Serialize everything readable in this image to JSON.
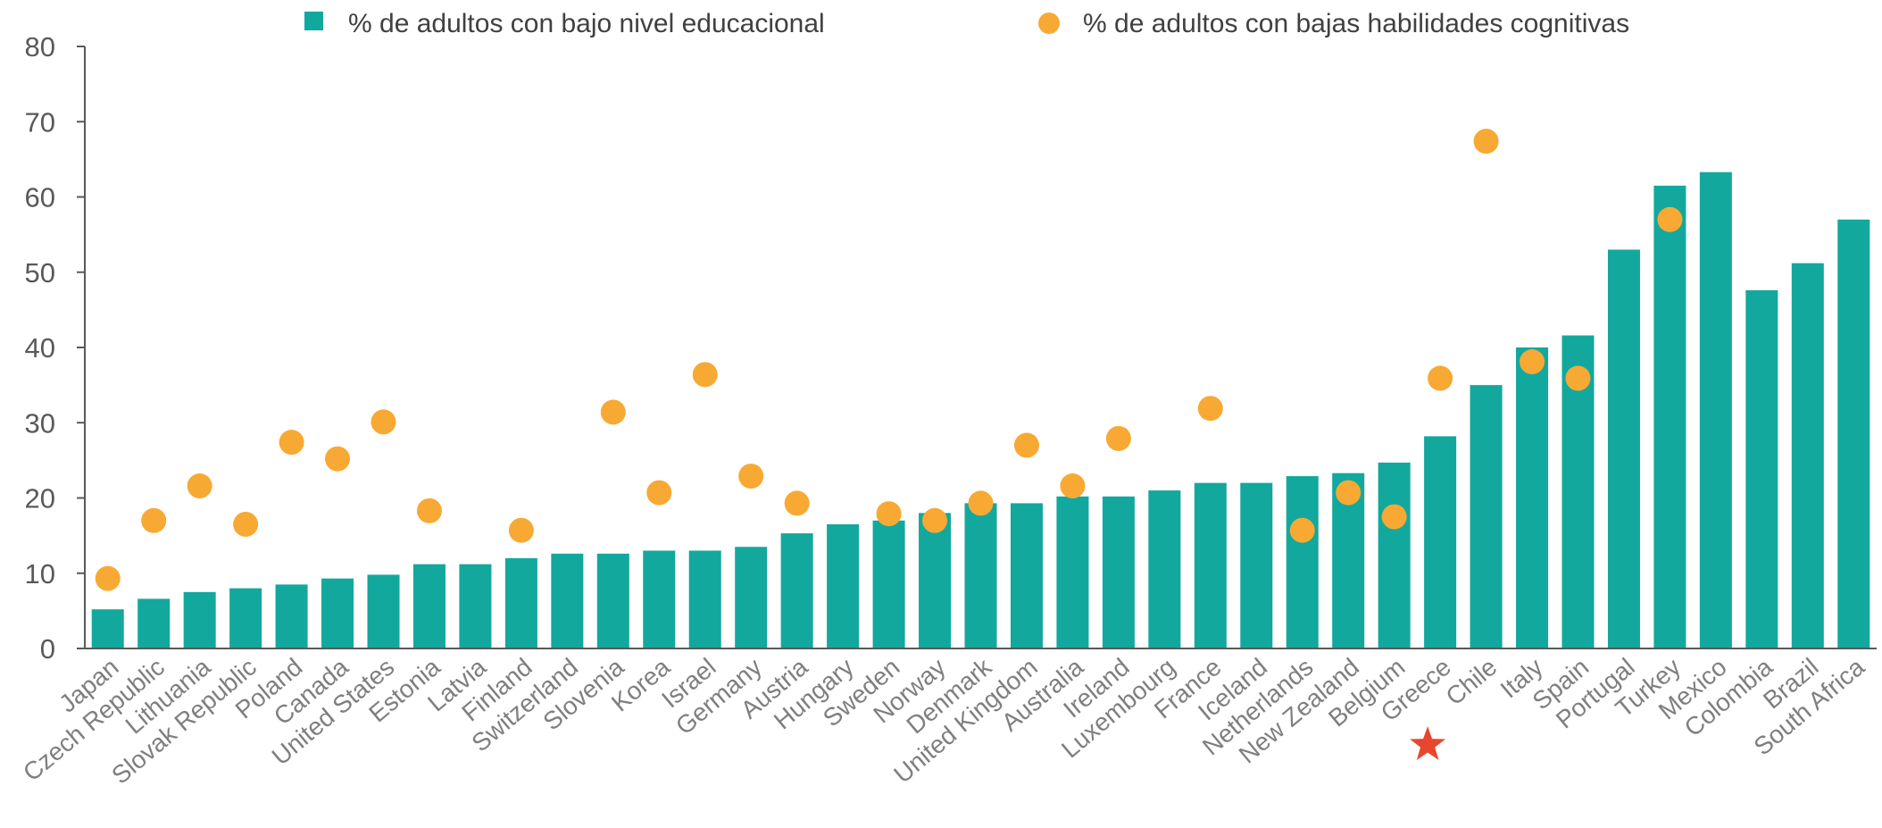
{
  "chart_data": {
    "type": "bar",
    "title": "",
    "xlabel": "",
    "ylabel": "",
    "ylim": [
      0,
      80
    ],
    "yticks": [
      "0",
      "10",
      "20",
      "30",
      "40",
      "50",
      "60",
      "70",
      "80"
    ],
    "grid": false,
    "legend_position": "top",
    "categories": [
      "Japan",
      "Czech Republic",
      "Lithuania",
      "Slovak Republic",
      "Poland",
      "Canada",
      "United States",
      "Estonia",
      "Latvia",
      "Finland",
      "Switzerland",
      "Slovenia",
      "Korea",
      "Israel",
      "Germany",
      "Austria",
      "Hungary",
      "Sweden",
      "Norway",
      "Denmark",
      "United Kingdom",
      "Australia",
      "Ireland",
      "Luxembourg",
      "France",
      "Iceland",
      "Netherlands",
      "New Zealand",
      "Belgium",
      "Greece",
      "Chile",
      "Italy",
      "Spain",
      "Portugal",
      "Turkey",
      "Mexico",
      "Colombia",
      "Brazil",
      "South Africa"
    ],
    "series": [
      {
        "name": "% de adultos con bajo nivel educacional",
        "kind": "bar",
        "color": "#13a89e",
        "values": [
          5.2,
          6.6,
          7.5,
          8.0,
          8.5,
          9.3,
          9.8,
          11.2,
          11.2,
          12.0,
          12.6,
          12.6,
          13.0,
          13.0,
          13.5,
          15.3,
          16.5,
          17.0,
          18.0,
          19.3,
          19.3,
          20.2,
          20.2,
          21.0,
          22.0,
          22.0,
          22.9,
          23.3,
          24.7,
          28.2,
          35.0,
          40.0,
          41.6,
          53.0,
          61.5,
          63.3,
          47.6,
          51.2,
          57.0
        ]
      },
      {
        "name": "% de adultos con bajas habilidades cognitivas",
        "kind": "point",
        "color": "#f7a934",
        "values": [
          9.3,
          17.0,
          21.6,
          16.5,
          27.4,
          25.2,
          30.1,
          18.3,
          null,
          15.7,
          null,
          31.4,
          20.7,
          36.4,
          22.9,
          19.3,
          null,
          17.9,
          17.0,
          19.3,
          27.0,
          21.6,
          27.9,
          null,
          31.9,
          null,
          15.7,
          20.7,
          17.5,
          35.9,
          67.4,
          38.1,
          35.9,
          null,
          57.0,
          null,
          null,
          null,
          null
        ]
      }
    ],
    "annotations": [
      {
        "kind": "star-marker",
        "category": "Greece",
        "color": "#e8472e"
      }
    ]
  }
}
